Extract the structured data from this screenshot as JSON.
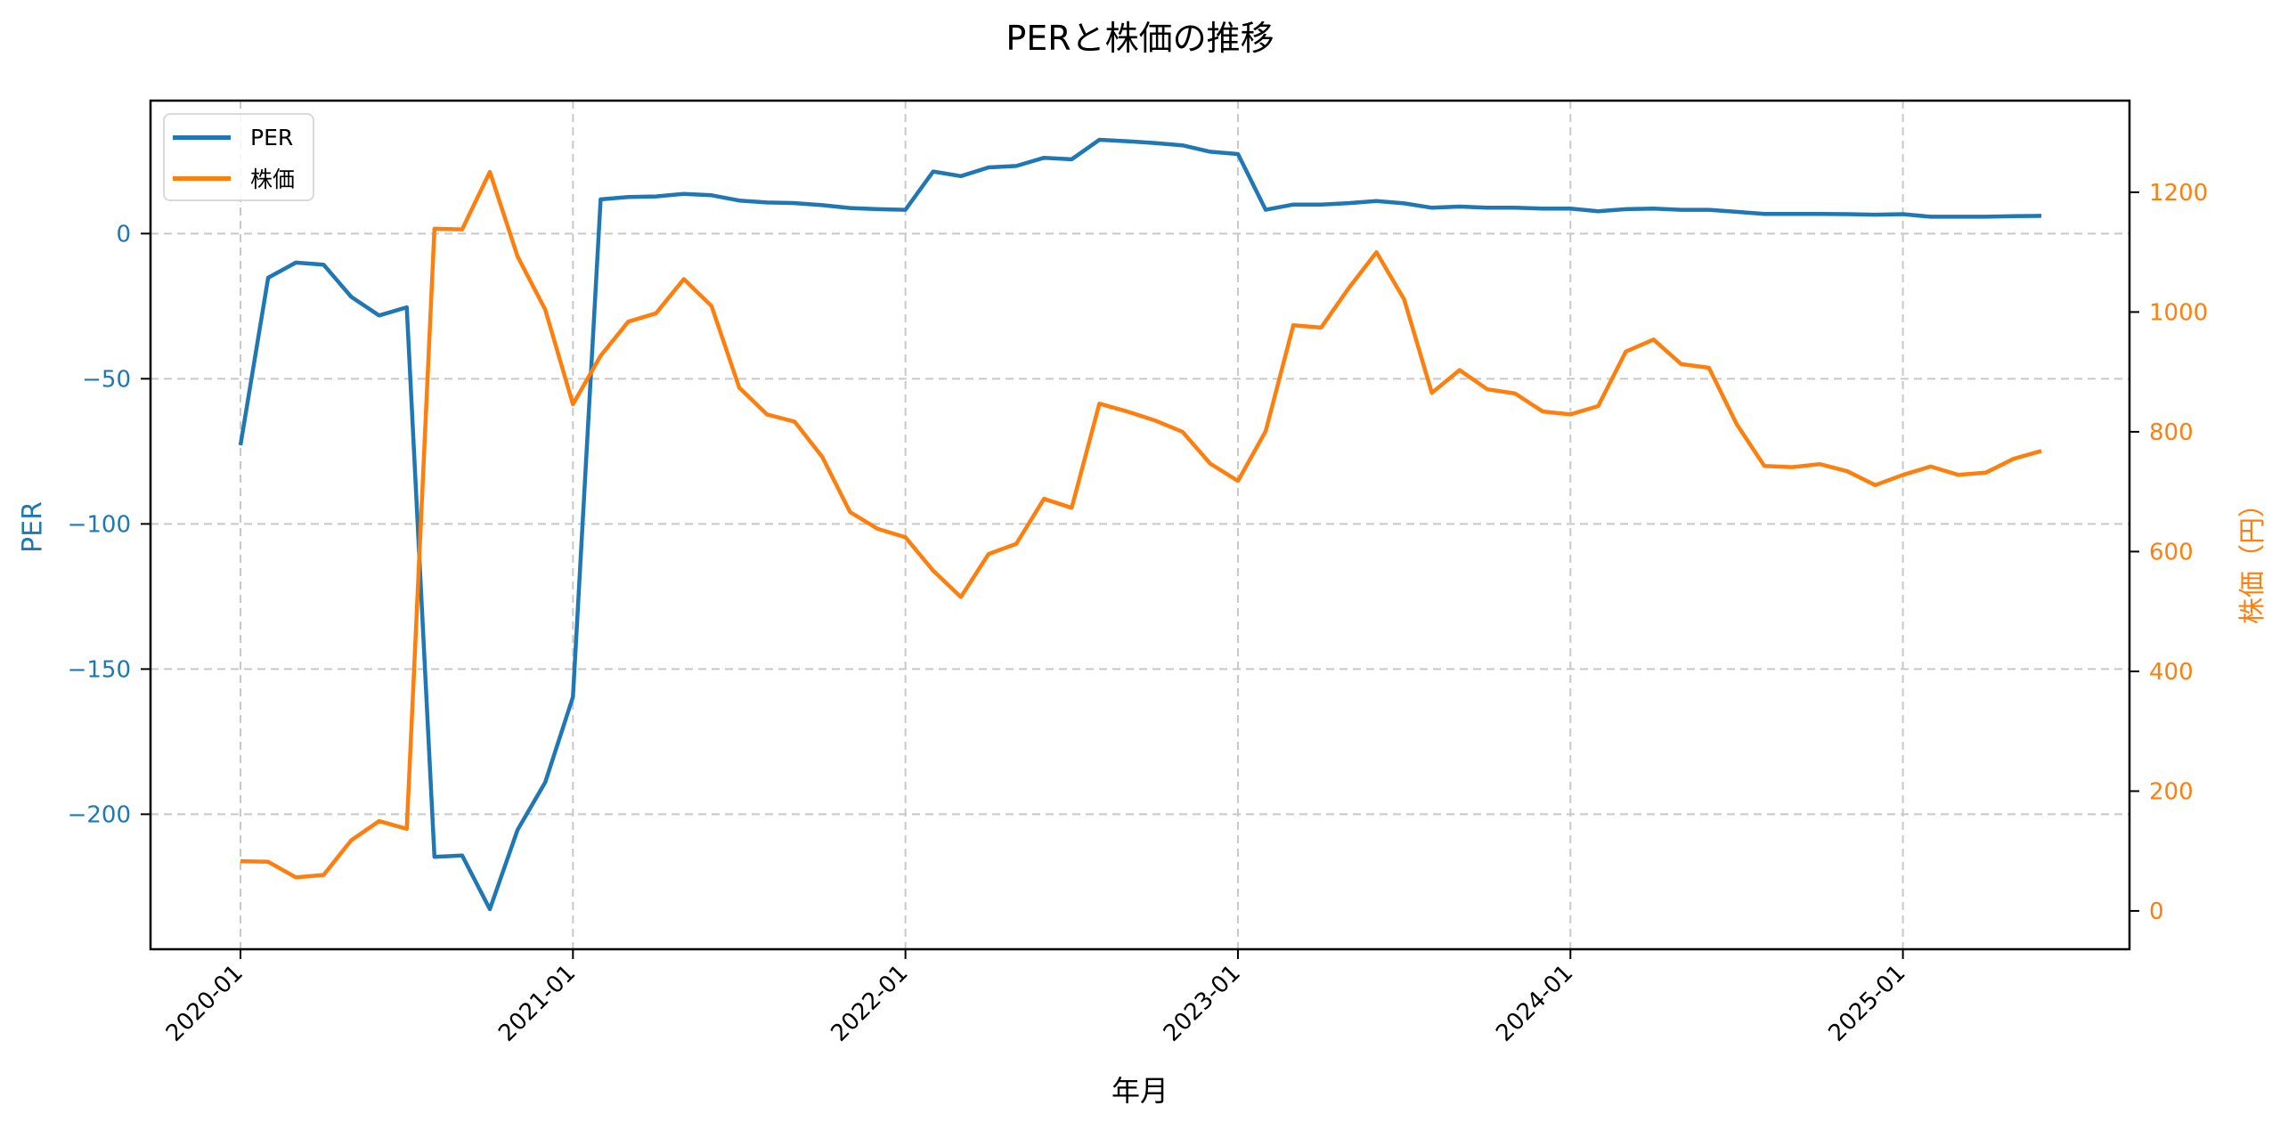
{
  "title": "PERと株価の推移",
  "xlabel": "年月",
  "ylabel_left": "PER",
  "ylabel_right": "株価（円）",
  "legend": [
    {
      "label": "PER",
      "color": "#1f77b4"
    },
    {
      "label": "株価",
      "color": "#ff7f0e"
    }
  ],
  "colors": {
    "per": "#1f77b4",
    "price": "#ff7f0e",
    "grid": "#c8c8c8",
    "axis": "#000000"
  },
  "chart_data": {
    "type": "line",
    "title": "PERと株価の推移",
    "xlabel": "年月",
    "ylabel": "PER",
    "ylabel_right": "株価（円）",
    "grid": true,
    "legend_position": "upper left",
    "x_tick_labels": [
      "2020-01",
      "2021-01",
      "2022-01",
      "2023-01",
      "2024-01",
      "2025-01"
    ],
    "y_left_ticks": [
      0,
      -50,
      -100,
      -150,
      -200
    ],
    "y_right_ticks": [
      0,
      200,
      400,
      600,
      800,
      1000,
      1200
    ],
    "ylim_left": [
      -246.5,
      45.8
    ],
    "ylim_right": [
      -64,
      1353
    ],
    "x": [
      "2020-01",
      "2020-02",
      "2020-03",
      "2020-04",
      "2020-05",
      "2020-06",
      "2020-07",
      "2020-08",
      "2020-09",
      "2020-10",
      "2020-11",
      "2020-12",
      "2021-01",
      "2021-02",
      "2021-03",
      "2021-04",
      "2021-05",
      "2021-06",
      "2021-07",
      "2021-08",
      "2021-09",
      "2021-10",
      "2021-11",
      "2021-12",
      "2022-01",
      "2022-02",
      "2022-03",
      "2022-04",
      "2022-05",
      "2022-06",
      "2022-07",
      "2022-08",
      "2022-09",
      "2022-10",
      "2022-11",
      "2022-12",
      "2023-01",
      "2023-02",
      "2023-03",
      "2023-04",
      "2023-05",
      "2023-06",
      "2023-07",
      "2023-08",
      "2023-09",
      "2023-10",
      "2023-11",
      "2023-12",
      "2024-01",
      "2024-02",
      "2024-03",
      "2024-04",
      "2024-05",
      "2024-06",
      "2024-07",
      "2024-08",
      "2024-09",
      "2024-10",
      "2024-11",
      "2024-12",
      "2025-01",
      "2025-02",
      "2025-03",
      "2025-04",
      "2025-05",
      "2025-06"
    ],
    "series": [
      {
        "name": "PER",
        "axis": "left",
        "color": "#1f77b4",
        "values": [
          -72.9,
          -15.2,
          -10.0,
          -10.7,
          -21.8,
          -28.2,
          -25.4,
          -214.7,
          -214.2,
          -232.7,
          -205.4,
          -189.0,
          -159.6,
          11.8,
          12.6,
          12.8,
          13.7,
          13.2,
          11.4,
          10.7,
          10.5,
          9.8,
          8.8,
          8.4,
          8.2,
          21.4,
          19.8,
          22.8,
          23.3,
          26.1,
          25.6,
          32.3,
          31.8,
          31.2,
          30.4,
          28.2,
          27.4,
          8.2,
          10.0,
          10.0,
          10.5,
          11.2,
          10.4,
          8.9,
          9.3,
          8.9,
          8.9,
          8.6,
          8.6,
          7.7,
          8.4,
          8.6,
          8.2,
          8.2,
          7.5,
          6.8,
          6.8,
          6.8,
          6.7,
          6.5,
          6.7,
          5.8,
          5.8,
          5.8,
          6.0,
          6.1
        ]
      },
      {
        "name": "株価",
        "axis": "right",
        "color": "#ff7f0e",
        "values": [
          83,
          82,
          56,
          60,
          118,
          150,
          137,
          1139,
          1138,
          1234,
          1093,
          1004,
          846,
          927,
          984,
          998,
          1055,
          1010,
          874,
          829,
          817,
          758,
          666,
          638,
          624,
          568,
          524,
          596,
          613,
          688,
          673,
          847,
          834,
          819,
          800,
          747,
          718,
          801,
          978,
          974,
          1040,
          1100,
          1021,
          865,
          903,
          871,
          864,
          834,
          829,
          843,
          934,
          954,
          913,
          907,
          813,
          743,
          741,
          746,
          734,
          711,
          728,
          742,
          728,
          732,
          755,
          768
        ]
      }
    ]
  }
}
